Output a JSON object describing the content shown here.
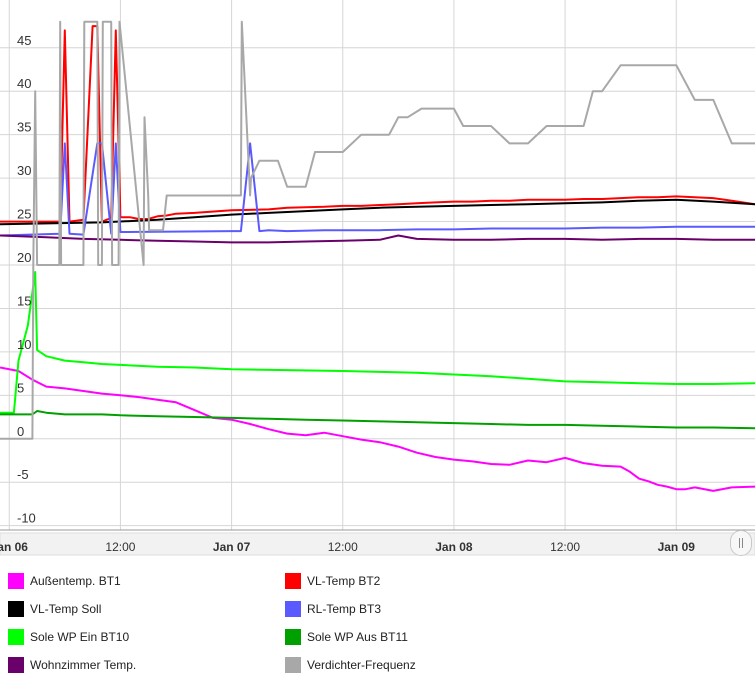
{
  "chart_data": {
    "type": "line",
    "x_ticks": [
      {
        "label": "Jan 06",
        "x": 0,
        "bold": true
      },
      {
        "label": "12:00",
        "x": 12,
        "bold": false
      },
      {
        "label": "Jan 07",
        "x": 24,
        "bold": true
      },
      {
        "label": "12:00",
        "x": 36,
        "bold": false
      },
      {
        "label": "Jan 08",
        "x": 48,
        "bold": true
      },
      {
        "label": "12:00",
        "x": 60,
        "bold": false
      },
      {
        "label": "Jan 09",
        "x": 72,
        "bold": true
      }
    ],
    "x_unit": "hours since Jan 06 00:00",
    "xlim": [
      -1,
      80.5
    ],
    "ylim": [
      -10.5,
      50.5
    ],
    "y_ticks": [
      -10,
      -5,
      0,
      5,
      10,
      15,
      20,
      25,
      30,
      35,
      40,
      45
    ],
    "grid": true,
    "legend_position": "bottom",
    "series": [
      {
        "name": "Außentemp. BT1",
        "color": "#ff00ff",
        "x": [
          -1,
          1,
          2.5,
          4,
          6,
          8,
          10,
          12,
          14,
          16,
          18,
          20,
          22,
          24,
          26,
          28,
          30,
          32,
          34,
          36,
          38,
          40,
          42,
          44,
          46,
          48,
          50,
          52,
          54,
          56,
          58,
          60,
          62,
          64,
          66,
          67,
          68,
          69,
          70,
          71,
          72,
          73,
          74,
          76,
          78,
          80.5
        ],
        "y": [
          8.2,
          7.8,
          6.8,
          6.0,
          5.8,
          5.5,
          5.2,
          5.0,
          4.8,
          4.5,
          4.2,
          3.3,
          2.4,
          2.2,
          1.7,
          1.1,
          0.6,
          0.4,
          0.7,
          0.3,
          -0.1,
          -0.4,
          -0.9,
          -1.6,
          -2.1,
          -2.4,
          -2.6,
          -2.9,
          -3.0,
          -2.5,
          -2.7,
          -2.2,
          -2.8,
          -3.1,
          -3.2,
          -3.8,
          -4.6,
          -4.9,
          -5.3,
          -5.5,
          -5.8,
          -5.8,
          -5.6,
          -6.0,
          -5.6,
          -5.5
        ]
      },
      {
        "name": "VL-Temp BT2",
        "color": "#ff0000",
        "x": [
          -1,
          5.5,
          6,
          6.5,
          8,
          9,
          9.5,
          10,
          11,
          11.5,
          12,
          13,
          14,
          15,
          16,
          17,
          18,
          20,
          24,
          28,
          30,
          34,
          36,
          38,
          40,
          42,
          44,
          46,
          48,
          50,
          52,
          54,
          56,
          58,
          60,
          62,
          64,
          66,
          68,
          70,
          72,
          74,
          76,
          78,
          80.5
        ],
        "y": [
          25,
          25,
          47,
          25,
          25.2,
          47.5,
          47.5,
          25,
          25.4,
          47,
          25.5,
          25.5,
          25.3,
          25.3,
          25.6,
          25.7,
          25.9,
          26,
          26.3,
          26.4,
          26.6,
          26.7,
          26.8,
          26.8,
          26.9,
          27.0,
          27.1,
          27.2,
          27.3,
          27.3,
          27.4,
          27.4,
          27.5,
          27.5,
          27.5,
          27.6,
          27.6,
          27.7,
          27.8,
          27.8,
          27.9,
          27.8,
          27.7,
          27.4,
          27.0
        ]
      },
      {
        "name": "VL-Temp Soll",
        "color": "#000000",
        "x": [
          -1,
          10,
          16,
          20,
          24,
          28,
          32,
          36,
          40,
          44,
          48,
          52,
          56,
          60,
          64,
          68,
          72,
          76,
          80.5
        ],
        "y": [
          24.7,
          24.9,
          25.2,
          25.5,
          25.8,
          26.0,
          26.2,
          26.4,
          26.6,
          26.7,
          26.8,
          26.9,
          27.0,
          27.1,
          27.2,
          27.4,
          27.5,
          27.3,
          27.0
        ]
      },
      {
        "name": "RL-Temp BT3",
        "color": "#5a5aff",
        "x": [
          -1,
          5.5,
          6,
          6.5,
          8,
          9.5,
          10,
          11,
          11.5,
          12,
          24,
          25,
          26,
          27,
          28,
          30,
          34,
          36,
          40,
          44,
          48,
          52,
          56,
          60,
          64,
          66,
          68,
          72,
          76,
          80.5
        ],
        "y": [
          23.4,
          23.6,
          34,
          23.6,
          23.5,
          34,
          34,
          23.6,
          34,
          23.8,
          23.9,
          23.9,
          34,
          23.9,
          24,
          23.9,
          24,
          24,
          24,
          24.1,
          24.1,
          24.2,
          24.2,
          24.2,
          24.3,
          24.3,
          24.3,
          24.4,
          24.4,
          24.4
        ]
      },
      {
        "name": "Sole WP Ein BT10",
        "color": "#00ff00",
        "x": [
          -1,
          0.5,
          1,
          2,
          2.8,
          3,
          4,
          6,
          8,
          10,
          12,
          16,
          20,
          24,
          30,
          36,
          40,
          44,
          48,
          52,
          56,
          60,
          64,
          68,
          72,
          76,
          80.5
        ],
        "y": [
          3.0,
          3.0,
          9.0,
          13.0,
          19.2,
          10.2,
          9.5,
          9.0,
          8.8,
          8.6,
          8.5,
          8.3,
          8.2,
          8.0,
          7.9,
          7.8,
          7.7,
          7.6,
          7.4,
          7.2,
          6.9,
          6.6,
          6.5,
          6.4,
          6.3,
          6.3,
          6.4
        ]
      },
      {
        "name": "Sole WP Aus BT11",
        "color": "#00a000",
        "x": [
          -1,
          2.5,
          3,
          4,
          6,
          8,
          10,
          12,
          16,
          20,
          24,
          28,
          32,
          36,
          40,
          44,
          48,
          52,
          56,
          60,
          64,
          68,
          72,
          76,
          80.5
        ],
        "y": [
          2.8,
          2.8,
          3.2,
          3.0,
          2.8,
          2.8,
          2.8,
          2.7,
          2.6,
          2.5,
          2.4,
          2.3,
          2.2,
          2.1,
          2.0,
          1.9,
          1.8,
          1.7,
          1.6,
          1.6,
          1.5,
          1.4,
          1.3,
          1.3,
          1.2
        ]
      },
      {
        "name": "Wohnzimmer Temp.",
        "color": "#6a006a",
        "x": [
          -1,
          4,
          8,
          12,
          16,
          20,
          24,
          28,
          32,
          36,
          40,
          42,
          44,
          48,
          52,
          56,
          60,
          64,
          68,
          72,
          76,
          80.5
        ],
        "y": [
          23.4,
          23.2,
          23.0,
          22.9,
          22.8,
          22.7,
          22.6,
          22.6,
          22.7,
          22.8,
          22.9,
          23.4,
          23.0,
          22.9,
          22.9,
          23.0,
          23.0,
          22.9,
          23.0,
          23.0,
          22.9,
          22.9
        ]
      },
      {
        "name": "Verdichter-Frequenz",
        "color": "#a8a8a8",
        "x": [
          -1,
          2.5,
          2.6,
          2.8,
          3.0,
          4.0,
          5.4,
          5.5,
          5.6,
          6.5,
          6.6,
          8.0,
          8.1,
          9.5,
          9.6,
          10.0,
          10.1,
          11.0,
          11.1,
          11.8,
          11.9,
          14.5,
          14.6,
          15.0,
          15.1,
          16.5,
          16.6,
          17.0,
          17.1,
          18.0,
          20.0,
          25.0,
          25.1,
          26.0,
          26.1,
          27.0,
          29.0,
          30.0,
          32.0,
          33.0,
          36.0,
          38.0,
          40.0,
          41.0,
          42.0,
          43.0,
          44.5,
          45.0,
          46.0,
          48.0,
          49.0,
          52.0,
          54.0,
          56.0,
          58.0,
          59.0,
          60.0,
          62.0,
          63.0,
          64.0,
          66.0,
          68.0,
          70.0,
          72.0,
          74.0,
          76.0,
          78.0,
          80.5
        ],
        "y": [
          0,
          0,
          20,
          40,
          20,
          20,
          20,
          48,
          20,
          20,
          20,
          20,
          48,
          48,
          20,
          20,
          48,
          48,
          20,
          20,
          48,
          20,
          37,
          28,
          24,
          24,
          24,
          28,
          28,
          28,
          28,
          28,
          48,
          28,
          30,
          32,
          32,
          29,
          29,
          33,
          33,
          35,
          35,
          35,
          37,
          37,
          38,
          38,
          38,
          38,
          36,
          36,
          34,
          34,
          36,
          36,
          36,
          36,
          40,
          40,
          43,
          43,
          43,
          43,
          39,
          39,
          34,
          34
        ]
      }
    ]
  }
}
